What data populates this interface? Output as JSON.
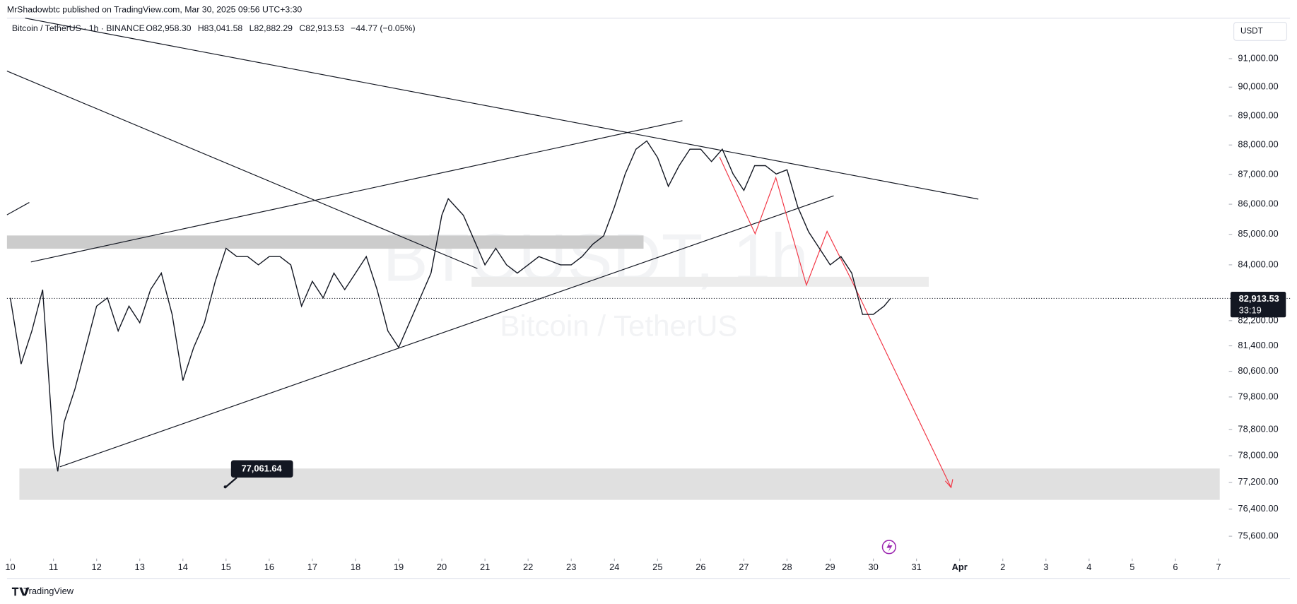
{
  "header": {
    "publisher": "MrShadowbtc published on TradingView.com, Mar 30, 2025 09:56 UTC+3:30",
    "symbol": "Bitcoin / TetherUS · 1h · BINANCE",
    "ohlc": [
      "O82,958.30",
      "H83,041.58",
      "L82,882.29",
      "C82,913.53",
      "−44.77 (−0.05%)"
    ],
    "currency": "USDT",
    "watermark": "BTCUSDT, 1h",
    "watermark_sub": "Bitcoin / TetherUS",
    "footer": "TradingView"
  },
  "chart_data": {
    "type": "line",
    "color": "#131722",
    "log_scale": true,
    "x": [
      10.0,
      10.25,
      10.5,
      10.75,
      11.0,
      11.1,
      11.25,
      11.5,
      11.75,
      12.0,
      12.25,
      12.5,
      12.75,
      13.0,
      13.25,
      13.5,
      13.75,
      14.0,
      14.25,
      14.5,
      14.75,
      15.0,
      15.25,
      15.5,
      15.75,
      16.0,
      16.25,
      16.5,
      16.75,
      17.0,
      17.25,
      17.5,
      17.75,
      18.0,
      18.25,
      18.5,
      18.75,
      19.0,
      19.25,
      19.5,
      19.75,
      20.0,
      20.15,
      20.5,
      20.75,
      21.0,
      21.25,
      21.5,
      21.75,
      22.0,
      22.25,
      22.5,
      22.75,
      23.0,
      23.25,
      23.5,
      23.75,
      24.0,
      24.25,
      24.5,
      24.75,
      25.0,
      25.25,
      25.5,
      25.75,
      26.0,
      26.25,
      26.5,
      26.75,
      27.0,
      27.25,
      27.5,
      27.75,
      28.0,
      28.25,
      28.5,
      28.75,
      29.0,
      29.25,
      29.5,
      29.75,
      30.0,
      30.25,
      30.4
    ],
    "values": [
      82930,
      80828,
      81872,
      83195,
      78277,
      77528,
      79034,
      80055,
      81349,
      82664,
      82930,
      81872,
      82664,
      82135,
      83195,
      83731,
      82399,
      80312,
      81349,
      82135,
      83463,
      84540,
      84270,
      84270,
      84000,
      84270,
      84270,
      84000,
      82664,
      83463,
      82930,
      83731,
      83195,
      83731,
      84270,
      83195,
      81872,
      81349,
      82135,
      82930,
      83731,
      85632,
      86183,
      85632,
      84812,
      84000,
      84540,
      84000,
      83731,
      84000,
      84270,
      84135,
      84000,
      84000,
      84270,
      84676,
      84948,
      85907,
      87016,
      87858,
      88140,
      87575,
      86599,
      87297,
      87858,
      87858,
      87436,
      87858,
      87016,
      86461,
      87297,
      87297,
      87016,
      87158,
      85907,
      85084,
      84540,
      84000,
      84270,
      83731,
      82399,
      82399,
      82664,
      82913.53
    ],
    "xlim": [
      9.923,
      38.22
    ],
    "xticks": [
      10,
      11,
      12,
      13,
      14,
      15,
      16,
      17,
      18,
      19,
      20,
      21,
      22,
      23,
      24,
      25,
      26,
      27,
      28,
      29,
      30,
      31,
      {
        "value": 32,
        "label": "Apr"
      },
      {
        "value": 33,
        "label": "2"
      },
      {
        "value": 34,
        "label": "3"
      },
      {
        "value": 35,
        "label": "4"
      },
      {
        "value": 36,
        "label": "5"
      },
      {
        "value": 37,
        "label": "6"
      },
      {
        "value": 38,
        "label": "7"
      }
    ],
    "ylim": [
      75044,
      92441
    ],
    "yticks": [
      {
        "value": 91000,
        "label": "91,000.00"
      },
      {
        "value": 90000,
        "label": "90,000.00"
      },
      {
        "value": 89000,
        "label": "89,000.00"
      },
      {
        "value": 88000,
        "label": "88,000.00"
      },
      {
        "value": 87000,
        "label": "87,000.00"
      },
      {
        "value": 86000,
        "label": "86,000.00"
      },
      {
        "value": 85000,
        "label": "85,000.00"
      },
      {
        "value": 84000,
        "label": "84,000.00"
      },
      {
        "value": 82200,
        "label": "82,200.00"
      },
      {
        "value": 81400,
        "label": "81,400.00"
      },
      {
        "value": 80600,
        "label": "80,600.00"
      },
      {
        "value": 79800,
        "label": "79,800.00"
      },
      {
        "value": 78800,
        "label": "78,800.00"
      },
      {
        "value": 78000,
        "label": "78,000.00"
      },
      {
        "value": 77200,
        "label": "77,200.00"
      },
      {
        "value": 76400,
        "label": "76,400.00"
      },
      {
        "value": 75600,
        "label": "75,600.00"
      }
    ],
    "last_price": {
      "value": 82913.53,
      "label": "82,913.53"
    },
    "countdown": "33:19",
    "low_annotation": {
      "value": 77061.64,
      "label": "77,061.64"
    }
  }
}
